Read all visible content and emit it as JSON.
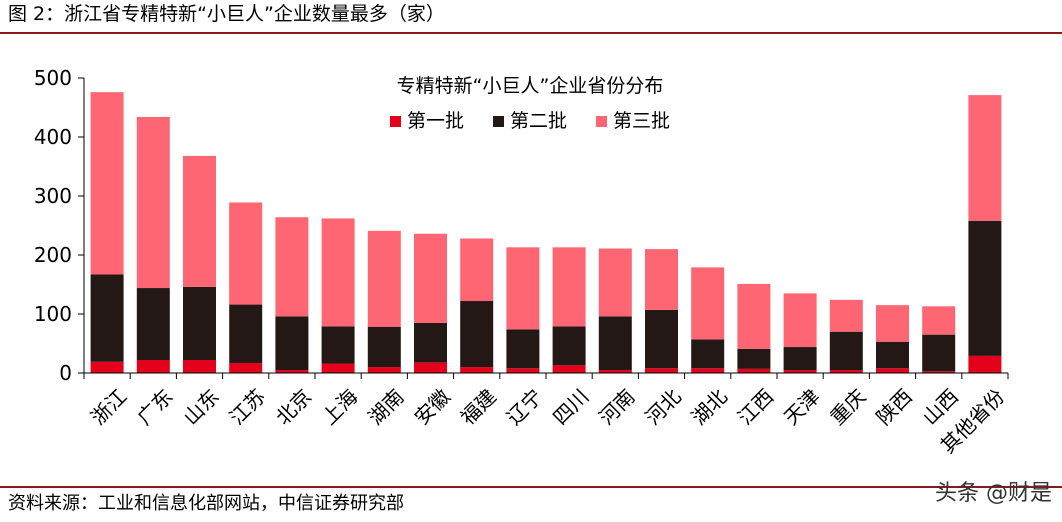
{
  "figure_title": "图 2：浙江省专精特新“小巨人”企业数量最多（家）",
  "source": "资料来源：工业和信息化部网站，中信证券研究部",
  "watermark": "头条 @财是",
  "chart_data": {
    "type": "bar",
    "stacked": true,
    "title": "专精特新“小巨人”企业省份分布",
    "xlabel": "",
    "ylabel": "",
    "ylim": [
      0,
      500
    ],
    "yticks": [
      0,
      100,
      200,
      300,
      400,
      500
    ],
    "grid": false,
    "legend_position": "top-center",
    "categories": [
      "浙江",
      "广东",
      "山东",
      "江苏",
      "北京",
      "上海",
      "湖南",
      "安徽",
      "福建",
      "辽宁",
      "四川",
      "河南",
      "河北",
      "湖北",
      "江西",
      "天津",
      "重庆",
      "陕西",
      "山西",
      "其他省份"
    ],
    "series": [
      {
        "name": "第一批",
        "color": "#e2001a",
        "values": [
          19,
          22,
          22,
          17,
          5,
          16,
          10,
          18,
          10,
          8,
          13,
          5,
          8,
          8,
          7,
          5,
          5,
          8,
          3,
          29
        ]
      },
      {
        "name": "第二批",
        "color": "#231815",
        "values": [
          148,
          122,
          124,
          99,
          91,
          63,
          68,
          67,
          112,
          66,
          66,
          91,
          99,
          49,
          34,
          39,
          65,
          45,
          62,
          229
        ]
      },
      {
        "name": "第三批",
        "color": "#ff6673",
        "values": [
          309,
          290,
          222,
          173,
          168,
          183,
          163,
          151,
          106,
          139,
          134,
          115,
          103,
          122,
          110,
          91,
          54,
          62,
          48,
          213
        ]
      }
    ]
  }
}
